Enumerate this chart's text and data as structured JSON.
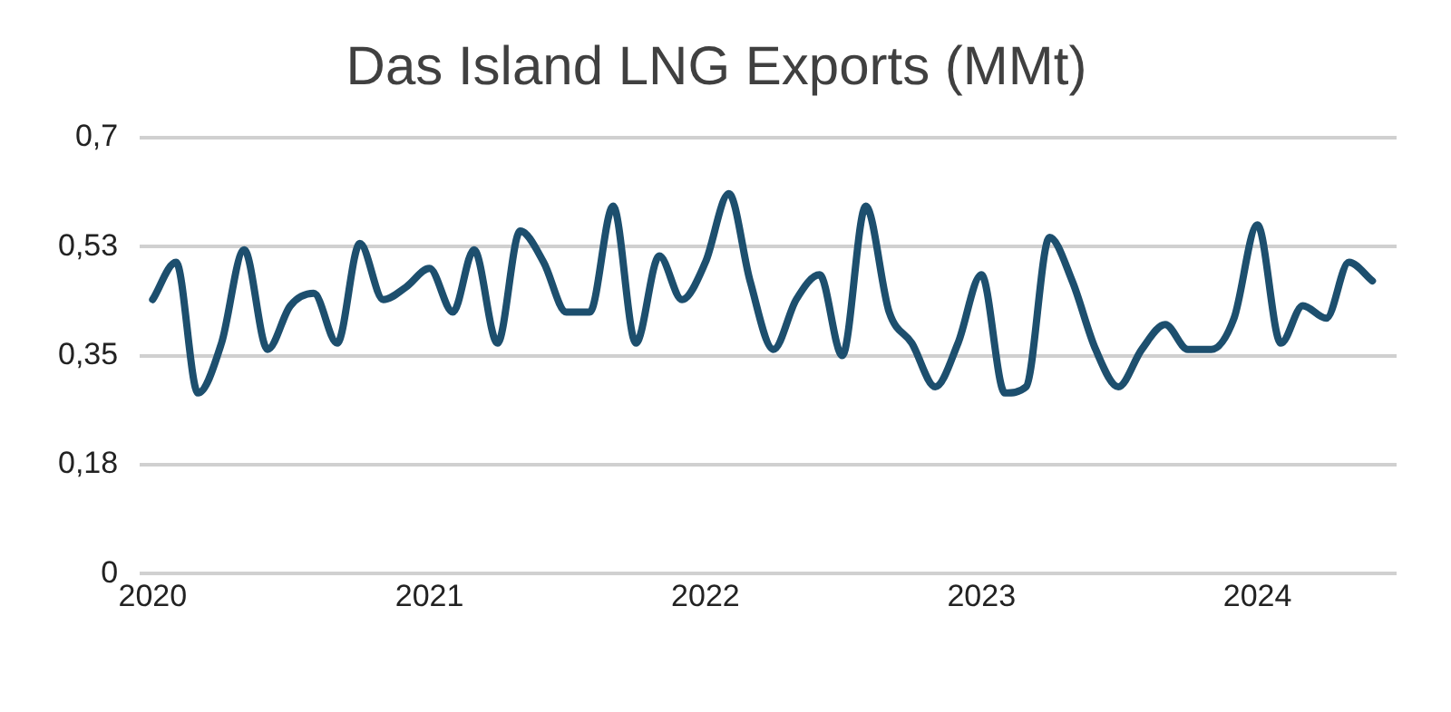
{
  "chart_data": {
    "type": "line",
    "title": "Das Island LNG Exports (MMt)",
    "x": [
      "2020-01",
      "2020-02",
      "2020-03",
      "2020-04",
      "2020-05",
      "2020-06",
      "2020-07",
      "2020-08",
      "2020-09",
      "2020-10",
      "2020-11",
      "2020-12",
      "2021-01",
      "2021-02",
      "2021-03",
      "2021-04",
      "2021-05",
      "2021-06",
      "2021-07",
      "2021-08",
      "2021-09",
      "2021-10",
      "2021-11",
      "2021-12",
      "2022-01",
      "2022-02",
      "2022-03",
      "2022-04",
      "2022-05",
      "2022-06",
      "2022-07",
      "2022-08",
      "2022-09",
      "2022-10",
      "2022-11",
      "2022-12",
      "2023-01",
      "2023-02",
      "2023-03",
      "2023-04",
      "2023-05",
      "2023-06",
      "2023-07",
      "2023-08",
      "2023-09",
      "2023-10",
      "2023-11",
      "2023-12",
      "2024-01",
      "2024-02",
      "2024-03",
      "2024-04",
      "2024-05",
      "2024-06"
    ],
    "series": [
      {
        "color": "#1d4f6e",
        "values": [
          0.44,
          0.5,
          0.29,
          0.37,
          0.52,
          0.36,
          0.43,
          0.45,
          0.37,
          0.53,
          0.44,
          0.46,
          0.49,
          0.42,
          0.52,
          0.37,
          0.55,
          0.5,
          0.42,
          0.42,
          0.59,
          0.37,
          0.51,
          0.44,
          0.5,
          0.61,
          0.47,
          0.36,
          0.44,
          0.48,
          0.35,
          0.59,
          0.42,
          0.37,
          0.3,
          0.37,
          0.48,
          0.29,
          0.3,
          0.54,
          0.47,
          0.36,
          0.3,
          0.36,
          0.4,
          0.36,
          0.36,
          0.41,
          0.56,
          0.37,
          0.43,
          0.41,
          0.5,
          0.47
        ]
      }
    ],
    "xlim": [
      "2019-12-15",
      "2024-07-03"
    ],
    "xticks": [
      "2020",
      "2021",
      "2022",
      "2023",
      "2024"
    ],
    "ylim": [
      0,
      0.7
    ],
    "yticks": [
      0,
      {
        "value": 0.175,
        "label": "0,18"
      },
      {
        "value": 0.35,
        "label": "0,35"
      },
      {
        "value": 0.525,
        "label": "0,53"
      },
      {
        "value": 0.7,
        "label": "0,7"
      }
    ],
    "grid": "y",
    "legend": false,
    "marker": "none",
    "line_style": "solid"
  }
}
